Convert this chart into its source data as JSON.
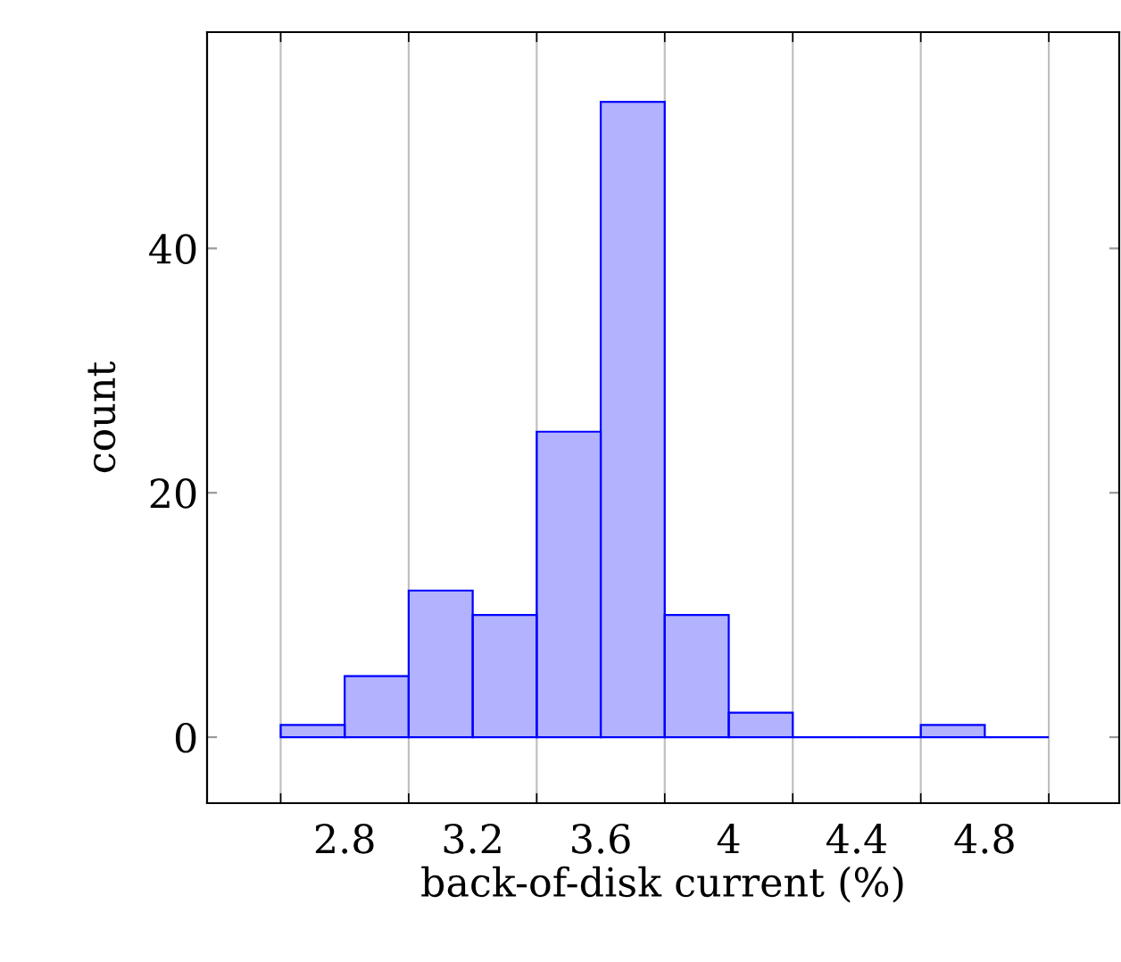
{
  "chart_data": {
    "type": "histogram",
    "xlabel": "back-of-disk current (%)",
    "ylabel": "count",
    "bins": [
      2.6,
      2.8,
      3.0,
      3.2,
      3.4,
      3.6,
      3.8,
      4.0,
      4.2,
      4.4,
      4.6,
      4.8,
      5.0
    ],
    "values": [
      1,
      5,
      12,
      10,
      25,
      52,
      10,
      2,
      0,
      0,
      1,
      0
    ],
    "color": "#0000ff",
    "xlim": [
      2.37,
      5.22
    ],
    "ylim": [
      -5.4,
      57.7
    ],
    "xticks": [
      {
        "value": 2.6,
        "label": null
      },
      {
        "value": 2.8,
        "label": "2.8"
      },
      {
        "value": 3.0,
        "label": null
      },
      {
        "value": 3.2,
        "label": "3.2"
      },
      {
        "value": 3.4,
        "label": null
      },
      {
        "value": 3.6,
        "label": "3.6"
      },
      {
        "value": 3.8,
        "label": null
      },
      {
        "value": 4.0,
        "label": "4"
      },
      {
        "value": 4.2,
        "label": null
      },
      {
        "value": 4.4,
        "label": "4.4"
      },
      {
        "value": 4.6,
        "label": null
      },
      {
        "value": 4.8,
        "label": "4.8"
      },
      {
        "value": 5.0,
        "label": null
      }
    ],
    "yticks": [
      0,
      20,
      40
    ],
    "grid": "x"
  }
}
